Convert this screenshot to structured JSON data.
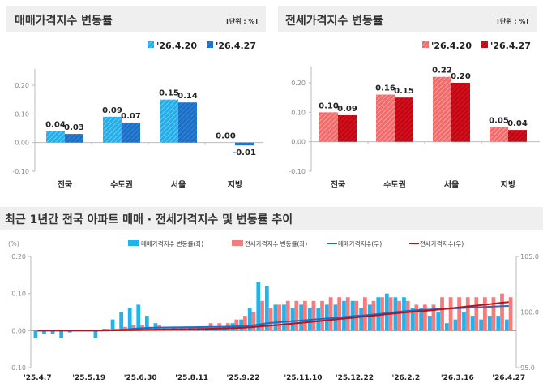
{
  "chart_data": [
    {
      "type": "bar",
      "title": "매매가격지수 변동률",
      "unit": "[단위 : %]",
      "categories": [
        "전국",
        "수도권",
        "서울",
        "지방"
      ],
      "series": [
        {
          "name": "'26.4.20",
          "values": [
            0.04,
            0.09,
            0.15,
            0.0
          ],
          "labels": [
            "0.04",
            "0.09",
            "0.15",
            "0.00"
          ],
          "color": "#22aee8"
        },
        {
          "name": "'26.4.27",
          "values": [
            0.03,
            0.07,
            0.14,
            -0.01
          ],
          "labels": [
            "0.03",
            "0.07",
            "0.14",
            "-0.01"
          ],
          "color": "#1b6fc7"
        }
      ],
      "ylim": [
        -0.1,
        0.2
      ],
      "yticks": [
        "0.20",
        "0.10",
        "0.00",
        "-0.10"
      ],
      "legend": "top-right"
    },
    {
      "type": "bar",
      "title": "전세가격지수 변동률",
      "unit": "[단위 : %]",
      "categories": [
        "전국",
        "수도권",
        "서울",
        "지방"
      ],
      "series": [
        {
          "name": "'26.4.20",
          "values": [
            0.1,
            0.16,
            0.22,
            0.05
          ],
          "labels": [
            "0.10",
            "0.16",
            "0.22",
            "0.05"
          ],
          "color": "#f26b6b"
        },
        {
          "name": "'26.4.27",
          "values": [
            0.09,
            0.15,
            0.2,
            0.04
          ],
          "labels": [
            "0.09",
            "0.15",
            "0.20",
            "0.04"
          ],
          "color": "#d10f1a"
        }
      ],
      "ylim": [
        -0.1,
        0.2
      ],
      "yticks": [
        "0.20",
        "0.10",
        "0.00",
        "-0.10"
      ],
      "legend": "top-right"
    },
    {
      "type": "bar+line",
      "title": "최근 1년간 전국 아파트 매매 · 전세가격지수 및 변동률 추이",
      "yunit": "(%)",
      "xticks": [
        "'25.4.7",
        "'25.5.19",
        "'25.6.30",
        "'25.8.11",
        "'25.9.22",
        "'25.11.10",
        "'25.12.22",
        "'26.2.2",
        "'26.3.16",
        "'26.4.27"
      ],
      "xtick_index": [
        0,
        6,
        12,
        18,
        24,
        31,
        37,
        43,
        49,
        55
      ],
      "ylim_left": [
        -0.1,
        0.2
      ],
      "yticks_left": [
        "0.20",
        "0.10",
        "0.00",
        "-0.10"
      ],
      "ylim_right": [
        95.0,
        105.0
      ],
      "yticks_right": [
        "105.0",
        "100.0",
        "95.0"
      ],
      "legend": [
        "매매가격지수 변동률(좌)",
        "전세가격지수 변동률(좌)",
        "매매가격지수(우)",
        "전세가격지수(우)"
      ],
      "sale_rate": [
        -0.02,
        -0.01,
        -0.01,
        -0.02,
        -0.005,
        0,
        0,
        -0.02,
        0.005,
        0.03,
        0.05,
        0.06,
        0.07,
        0.04,
        0.02,
        0.01,
        0.01,
        0.01,
        0.01,
        0.01,
        0.01,
        0.01,
        0.01,
        0.02,
        0.03,
        0.06,
        0.13,
        0.12,
        0.07,
        0.07,
        0.06,
        0.07,
        0.06,
        0.06,
        0.07,
        0.07,
        0.08,
        0.08,
        0.06,
        0.07,
        0.09,
        0.1,
        0.09,
        0.09,
        0.06,
        0.06,
        0.04,
        0.05,
        0.02,
        0.03,
        0.05,
        0.04,
        0.03,
        0.04,
        0.04,
        0.03
      ],
      "jeonse_rate": [
        0,
        0,
        0,
        0,
        0,
        0,
        0,
        0,
        0.005,
        0.005,
        0.01,
        0.015,
        0.015,
        0.01,
        0.015,
        0.01,
        0.01,
        0.01,
        0.01,
        0.01,
        0.02,
        0.02,
        0.02,
        0.03,
        0.04,
        0.05,
        0.08,
        0.06,
        0.07,
        0.08,
        0.08,
        0.08,
        0.08,
        0.08,
        0.09,
        0.09,
        0.09,
        0.08,
        0.09,
        0.08,
        0.09,
        0.09,
        0.08,
        0.08,
        0.07,
        0.07,
        0.07,
        0.09,
        0.09,
        0.09,
        0.09,
        0.09,
        0.09,
        0.09,
        0.1,
        0.09
      ],
      "index_start": 98.33,
      "sale_index_end": 100.55,
      "jeonse_index_end": 100.9,
      "colors": {
        "sale_rate": "#1cb5ef",
        "jeonse_rate": "#f77b7b",
        "sale_index": "#1b6fc7",
        "jeonse_index": "#c0101a"
      }
    }
  ]
}
